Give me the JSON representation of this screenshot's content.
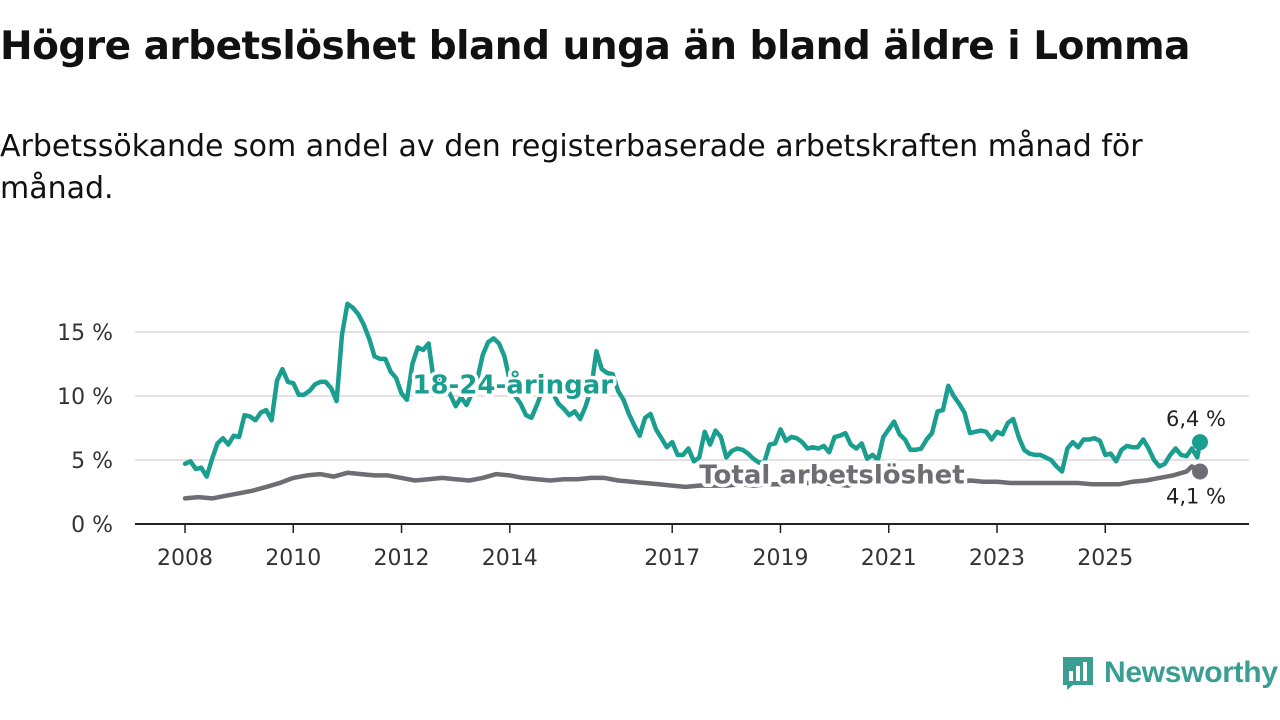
{
  "header": {
    "title": "Högre arbetslöshet bland unga än bland äldre i Lomma",
    "subtitle": "Arbetssökande som andel av den registerbaserade arbetskraften månad för månad."
  },
  "brand": {
    "name": "Newsworthy",
    "icon": "newsworthy-logo-icon",
    "color": "#3a9e93"
  },
  "chart_data": {
    "type": "line",
    "title": "Högre arbetslöshet bland unga än bland äldre i Lomma",
    "xlabel": "",
    "ylabel": "",
    "xlim": [
      2008,
      2026.75
    ],
    "ylim": [
      0,
      17.5
    ],
    "y_ticks": [
      0,
      5,
      10,
      15
    ],
    "y_tick_labels": [
      "0 %",
      "5 %",
      "10 %",
      "15 %"
    ],
    "x_ticks": [
      2008,
      2010,
      2012,
      2014,
      2017,
      2019,
      2021,
      2023,
      2025
    ],
    "x_tick_labels": [
      "2008",
      "2010",
      "2012",
      "2014",
      "2017",
      "2019",
      "2021",
      "2023",
      "2025"
    ],
    "grid": true,
    "series": [
      {
        "name": "18-24-åringar",
        "label": "18-24-åringar",
        "label_at": [
          2012.2,
          10.9
        ],
        "color": "#1a9e8f",
        "end_label": "6,4 %",
        "points": [
          [
            2008.0,
            4.7
          ],
          [
            2008.1,
            4.9
          ],
          [
            2008.2,
            4.3
          ],
          [
            2008.3,
            4.4
          ],
          [
            2008.4,
            3.7
          ],
          [
            2008.5,
            5.1
          ],
          [
            2008.6,
            6.3
          ],
          [
            2008.7,
            6.7
          ],
          [
            2008.8,
            6.2
          ],
          [
            2008.9,
            6.9
          ],
          [
            2009.0,
            6.8
          ],
          [
            2009.1,
            8.5
          ],
          [
            2009.2,
            8.4
          ],
          [
            2009.3,
            8.1
          ],
          [
            2009.4,
            8.7
          ],
          [
            2009.5,
            8.9
          ],
          [
            2009.6,
            8.1
          ],
          [
            2009.7,
            11.2
          ],
          [
            2009.8,
            12.1
          ],
          [
            2009.9,
            11.1
          ],
          [
            2010.0,
            11.0
          ],
          [
            2010.1,
            10.1
          ],
          [
            2010.2,
            10.1
          ],
          [
            2010.3,
            10.4
          ],
          [
            2010.4,
            10.9
          ],
          [
            2010.5,
            11.1
          ],
          [
            2010.6,
            11.1
          ],
          [
            2010.7,
            10.6
          ],
          [
            2010.8,
            9.6
          ],
          [
            2010.9,
            14.8
          ],
          [
            2011.0,
            17.2
          ],
          [
            2011.1,
            16.9
          ],
          [
            2011.2,
            16.4
          ],
          [
            2011.3,
            15.6
          ],
          [
            2011.4,
            14.5
          ],
          [
            2011.5,
            13.1
          ],
          [
            2011.6,
            12.9
          ],
          [
            2011.7,
            12.9
          ],
          [
            2011.8,
            11.9
          ],
          [
            2011.9,
            11.4
          ],
          [
            2012.0,
            10.2
          ],
          [
            2012.1,
            9.7
          ],
          [
            2012.2,
            12.5
          ],
          [
            2012.3,
            13.8
          ],
          [
            2012.4,
            13.6
          ],
          [
            2012.5,
            14.1
          ],
          [
            2012.6,
            11.1
          ],
          [
            2012.7,
            11.2
          ],
          [
            2012.8,
            10.8
          ],
          [
            2012.9,
            10.1
          ],
          [
            2013.0,
            9.2
          ],
          [
            2013.1,
            9.9
          ],
          [
            2013.2,
            9.3
          ],
          [
            2013.3,
            10.2
          ],
          [
            2013.4,
            11.3
          ],
          [
            2013.5,
            13.2
          ],
          [
            2013.6,
            14.2
          ],
          [
            2013.7,
            14.5
          ],
          [
            2013.8,
            14.1
          ],
          [
            2013.9,
            13.1
          ],
          [
            2014.0,
            11.2
          ],
          [
            2014.1,
            10.0
          ],
          [
            2014.2,
            9.4
          ],
          [
            2014.3,
            8.5
          ],
          [
            2014.4,
            8.3
          ],
          [
            2014.5,
            9.3
          ],
          [
            2014.6,
            10.4
          ],
          [
            2014.7,
            10.6
          ],
          [
            2014.8,
            10.2
          ],
          [
            2014.9,
            9.4
          ],
          [
            2015.0,
            9.0
          ],
          [
            2015.1,
            8.5
          ],
          [
            2015.2,
            8.8
          ],
          [
            2015.3,
            8.2
          ],
          [
            2015.4,
            9.2
          ],
          [
            2015.5,
            10.5
          ],
          [
            2015.6,
            13.5
          ],
          [
            2015.7,
            12.1
          ],
          [
            2015.8,
            11.8
          ],
          [
            2015.9,
            11.7
          ],
          [
            2016.0,
            10.4
          ],
          [
            2016.1,
            9.7
          ],
          [
            2016.2,
            8.6
          ],
          [
            2016.3,
            7.7
          ],
          [
            2016.4,
            6.9
          ],
          [
            2016.5,
            8.3
          ],
          [
            2016.6,
            8.6
          ],
          [
            2016.7,
            7.4
          ],
          [
            2016.8,
            6.7
          ],
          [
            2016.9,
            6.0
          ],
          [
            2017.0,
            6.4
          ],
          [
            2017.1,
            5.4
          ],
          [
            2017.2,
            5.4
          ],
          [
            2017.3,
            5.9
          ],
          [
            2017.4,
            4.9
          ],
          [
            2017.5,
            5.2
          ],
          [
            2017.6,
            7.2
          ],
          [
            2017.7,
            6.2
          ],
          [
            2017.8,
            7.3
          ],
          [
            2017.9,
            6.8
          ],
          [
            2018.0,
            5.2
          ],
          [
            2018.1,
            5.7
          ],
          [
            2018.2,
            5.9
          ],
          [
            2018.3,
            5.8
          ],
          [
            2018.4,
            5.5
          ],
          [
            2018.5,
            5.1
          ],
          [
            2018.6,
            4.8
          ],
          [
            2018.7,
            4.8
          ],
          [
            2018.8,
            6.2
          ],
          [
            2018.9,
            6.3
          ],
          [
            2019.0,
            7.4
          ],
          [
            2019.1,
            6.5
          ],
          [
            2019.2,
            6.8
          ],
          [
            2019.3,
            6.7
          ],
          [
            2019.4,
            6.4
          ],
          [
            2019.5,
            5.9
          ],
          [
            2019.6,
            6.0
          ],
          [
            2019.7,
            5.9
          ],
          [
            2019.8,
            6.1
          ],
          [
            2019.9,
            5.6
          ],
          [
            2020.0,
            6.8
          ],
          [
            2020.1,
            6.9
          ],
          [
            2020.2,
            7.1
          ],
          [
            2020.3,
            6.2
          ],
          [
            2020.4,
            5.9
          ],
          [
            2020.5,
            6.3
          ],
          [
            2020.6,
            5.1
          ],
          [
            2020.7,
            5.4
          ],
          [
            2020.8,
            5.0
          ],
          [
            2020.9,
            6.8
          ],
          [
            2021.0,
            7.4
          ],
          [
            2021.1,
            8.0
          ],
          [
            2021.2,
            7.0
          ],
          [
            2021.3,
            6.6
          ],
          [
            2021.4,
            5.8
          ],
          [
            2021.5,
            5.8
          ],
          [
            2021.6,
            5.9
          ],
          [
            2021.7,
            6.6
          ],
          [
            2021.8,
            7.1
          ],
          [
            2021.9,
            8.8
          ],
          [
            2022.0,
            8.9
          ],
          [
            2022.1,
            10.8
          ],
          [
            2022.2,
            10.0
          ],
          [
            2022.3,
            9.4
          ],
          [
            2022.4,
            8.7
          ],
          [
            2022.5,
            7.1
          ],
          [
            2022.6,
            7.2
          ],
          [
            2022.7,
            7.3
          ],
          [
            2022.8,
            7.2
          ],
          [
            2022.9,
            6.6
          ],
          [
            2023.0,
            7.2
          ],
          [
            2023.1,
            7.0
          ],
          [
            2023.2,
            7.9
          ],
          [
            2023.3,
            8.2
          ],
          [
            2023.4,
            6.8
          ],
          [
            2023.5,
            5.8
          ],
          [
            2023.6,
            5.5
          ],
          [
            2023.7,
            5.4
          ],
          [
            2023.8,
            5.4
          ],
          [
            2023.9,
            5.2
          ],
          [
            2024.0,
            5.0
          ],
          [
            2024.1,
            4.5
          ],
          [
            2024.2,
            4.1
          ],
          [
            2024.3,
            5.9
          ],
          [
            2024.4,
            6.4
          ],
          [
            2024.5,
            6.0
          ],
          [
            2024.6,
            6.6
          ],
          [
            2024.7,
            6.6
          ],
          [
            2024.8,
            6.7
          ],
          [
            2024.9,
            6.5
          ],
          [
            2025.0,
            5.4
          ],
          [
            2025.1,
            5.5
          ],
          [
            2025.2,
            4.9
          ],
          [
            2025.3,
            5.8
          ],
          [
            2025.4,
            6.1
          ],
          [
            2025.5,
            6.0
          ],
          [
            2025.6,
            6.0
          ],
          [
            2025.7,
            6.6
          ],
          [
            2025.8,
            5.9
          ],
          [
            2025.9,
            5.0
          ],
          [
            2026.0,
            4.5
          ],
          [
            2026.1,
            4.7
          ],
          [
            2026.2,
            5.4
          ],
          [
            2026.3,
            5.9
          ],
          [
            2026.4,
            5.4
          ],
          [
            2026.5,
            5.3
          ],
          [
            2026.6,
            5.9
          ],
          [
            2026.7,
            5.2
          ],
          [
            2026.75,
            6.4
          ]
        ]
      },
      {
        "name": "Total arbetslöshet",
        "label": "Total arbetslöshet",
        "label_at": [
          2017.5,
          3.85
        ],
        "color": "#6d6d73",
        "end_label": "4,1 %",
        "points": [
          [
            2008.0,
            2.0
          ],
          [
            2008.25,
            2.1
          ],
          [
            2008.5,
            2.0
          ],
          [
            2008.75,
            2.2
          ],
          [
            2009.0,
            2.4
          ],
          [
            2009.25,
            2.6
          ],
          [
            2009.5,
            2.9
          ],
          [
            2009.75,
            3.2
          ],
          [
            2010.0,
            3.6
          ],
          [
            2010.25,
            3.8
          ],
          [
            2010.5,
            3.9
          ],
          [
            2010.75,
            3.7
          ],
          [
            2011.0,
            4.0
          ],
          [
            2011.25,
            3.9
          ],
          [
            2011.5,
            3.8
          ],
          [
            2011.75,
            3.8
          ],
          [
            2012.0,
            3.6
          ],
          [
            2012.25,
            3.4
          ],
          [
            2012.5,
            3.5
          ],
          [
            2012.75,
            3.6
          ],
          [
            2013.0,
            3.5
          ],
          [
            2013.25,
            3.4
          ],
          [
            2013.5,
            3.6
          ],
          [
            2013.75,
            3.9
          ],
          [
            2014.0,
            3.8
          ],
          [
            2014.25,
            3.6
          ],
          [
            2014.5,
            3.5
          ],
          [
            2014.75,
            3.4
          ],
          [
            2015.0,
            3.5
          ],
          [
            2015.25,
            3.5
          ],
          [
            2015.5,
            3.6
          ],
          [
            2015.75,
            3.6
          ],
          [
            2016.0,
            3.4
          ],
          [
            2016.25,
            3.3
          ],
          [
            2016.5,
            3.2
          ],
          [
            2016.75,
            3.1
          ],
          [
            2017.0,
            3.0
          ],
          [
            2017.25,
            2.9
          ],
          [
            2017.5,
            3.0
          ],
          [
            2017.75,
            3.0
          ],
          [
            2018.0,
            3.0
          ],
          [
            2018.25,
            3.1
          ],
          [
            2018.5,
            3.0
          ],
          [
            2018.75,
            3.1
          ],
          [
            2019.0,
            3.1
          ],
          [
            2019.25,
            3.1
          ],
          [
            2019.5,
            3.2
          ],
          [
            2019.75,
            3.2
          ],
          [
            2020.0,
            3.1
          ],
          [
            2020.25,
            3.0
          ],
          [
            2020.5,
            3.3
          ],
          [
            2020.75,
            3.2
          ],
          [
            2021.0,
            3.2
          ],
          [
            2021.25,
            3.3
          ],
          [
            2021.5,
            3.3
          ],
          [
            2021.75,
            3.3
          ],
          [
            2022.0,
            3.3
          ],
          [
            2022.25,
            3.2
          ],
          [
            2022.5,
            3.4
          ],
          [
            2022.75,
            3.3
          ],
          [
            2023.0,
            3.3
          ],
          [
            2023.25,
            3.2
          ],
          [
            2023.5,
            3.2
          ],
          [
            2023.75,
            3.2
          ],
          [
            2024.0,
            3.2
          ],
          [
            2024.25,
            3.2
          ],
          [
            2024.5,
            3.2
          ],
          [
            2024.75,
            3.1
          ],
          [
            2025.0,
            3.1
          ],
          [
            2025.25,
            3.1
          ],
          [
            2025.5,
            3.3
          ],
          [
            2025.75,
            3.4
          ],
          [
            2026.0,
            3.6
          ],
          [
            2026.25,
            3.8
          ],
          [
            2026.5,
            4.1
          ],
          [
            2026.6,
            4.5
          ],
          [
            2026.75,
            4.1
          ]
        ]
      }
    ]
  }
}
